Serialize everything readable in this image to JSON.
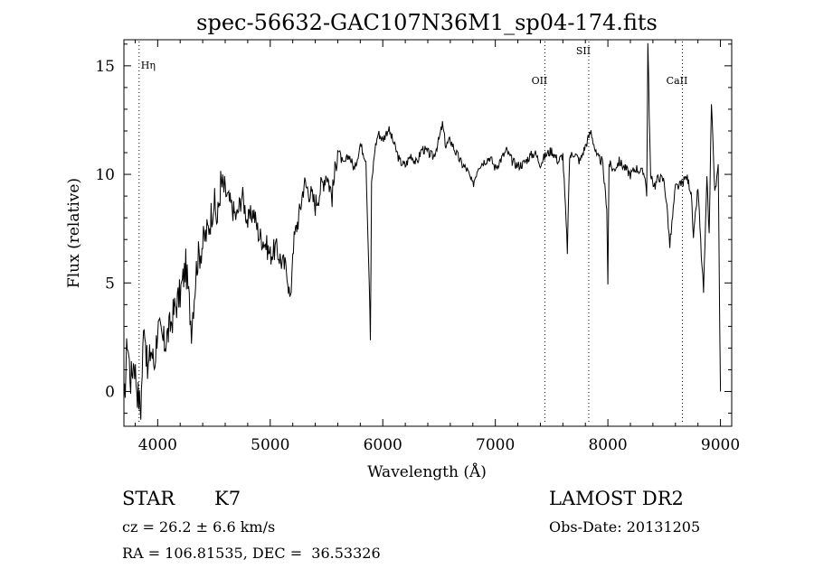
{
  "chart_data": {
    "type": "line",
    "title": "spec-56632-GAC107N36M1_sp04-174.fits",
    "xlabel": "Wavelength (Å)",
    "ylabel": "Flux (relative)",
    "xlim": [
      3700,
      9100
    ],
    "ylim": [
      -1.6,
      16.2
    ],
    "xticks": [
      "4000",
      "5000",
      "6000",
      "7000",
      "8000",
      "9000"
    ],
    "xtick_values": [
      4000,
      5000,
      6000,
      7000,
      8000,
      9000
    ],
    "yticks": [
      "0",
      "5",
      "10",
      "15"
    ],
    "ytick_values": [
      0,
      5,
      10,
      15
    ],
    "lines": [
      {
        "label": "Hη",
        "x": 3835
      },
      {
        "label": "OII",
        "x": 7440
      },
      {
        "label": "SII",
        "x": 7830
      },
      {
        "label": "CaII",
        "x": 8662
      }
    ],
    "series": [
      {
        "x": [
          3700,
          3730,
          3760,
          3790,
          3820,
          3850,
          3880,
          3910,
          3940,
          3970,
          4000,
          4030,
          4060,
          4100,
          4150,
          4200,
          4250,
          4300,
          4350,
          4400,
          4450,
          4500,
          4530,
          4560,
          4600,
          4650,
          4700,
          4750,
          4800,
          4850,
          4900,
          4950,
          5000,
          5050,
          5100,
          5150,
          5180,
          5200,
          5230,
          5260,
          5300,
          5350,
          5400,
          5450,
          5500,
          5550,
          5600,
          5650,
          5700,
          5750,
          5800,
          5850,
          5880,
          5890,
          5900,
          5930,
          5960,
          6000,
          6050,
          6100,
          6150,
          6200,
          6250,
          6300,
          6350,
          6400,
          6450,
          6500,
          6530,
          6560,
          6600,
          6650,
          6700,
          6750,
          6800,
          6850,
          6900,
          6950,
          7000,
          7050,
          7100,
          7150,
          7200,
          7250,
          7300,
          7350,
          7400,
          7450,
          7500,
          7560,
          7600,
          7640,
          7660,
          7700,
          7750,
          7800,
          7850,
          7900,
          7950,
          7990,
          8000,
          8010,
          8050,
          8100,
          8150,
          8200,
          8250,
          8300,
          8330,
          8345,
          8355,
          8380,
          8420,
          8450,
          8500,
          8530,
          8550,
          8600,
          8650,
          8700,
          8740,
          8760,
          8800,
          8830,
          8850,
          8880,
          8900,
          8920,
          8950,
          8980,
          9000
        ],
        "y": [
          -1.0,
          2.5,
          0.5,
          1.5,
          0.0,
          -0.8,
          3.5,
          0.8,
          2.0,
          1.2,
          3.0,
          2.5,
          2.2,
          2.8,
          3.8,
          4.5,
          5.8,
          3.0,
          6.0,
          6.8,
          7.5,
          8.8,
          7.8,
          9.6,
          9.2,
          8.6,
          8.0,
          9.1,
          7.8,
          8.3,
          7.2,
          6.9,
          6.3,
          6.6,
          6.0,
          5.6,
          4.0,
          6.6,
          7.5,
          8.2,
          9.6,
          9.2,
          8.6,
          9.4,
          10.1,
          9.0,
          11.2,
          10.4,
          10.9,
          10.2,
          11.4,
          10.7,
          5.0,
          2.4,
          9.5,
          11.2,
          11.9,
          11.6,
          12.1,
          11.4,
          10.6,
          10.4,
          10.9,
          10.5,
          11.2,
          11.0,
          10.8,
          11.6,
          12.3,
          11.3,
          11.6,
          11.0,
          10.5,
          10.2,
          9.5,
          10.4,
          10.6,
          10.8,
          10.3,
          10.7,
          11.1,
          10.6,
          10.4,
          10.5,
          10.8,
          11.0,
          10.5,
          10.9,
          11.1,
          10.6,
          10.9,
          6.5,
          10.8,
          11.0,
          10.6,
          11.3,
          12.0,
          10.8,
          10.6,
          8.5,
          4.9,
          10.5,
          10.2,
          10.6,
          10.3,
          10.0,
          10.3,
          10.1,
          10.0,
          9.0,
          16.0,
          9.8,
          9.5,
          9.9,
          9.7,
          8.2,
          6.7,
          9.4,
          9.5,
          9.9,
          9.2,
          7.0,
          9.4,
          6.3,
          4.6,
          9.7,
          7.2,
          13.4,
          9.1,
          10.3,
          0.0
        ]
      }
    ]
  },
  "info": {
    "object_class": "STAR",
    "subclass": "K7",
    "cz": "cz = 26.2 ± 6.6 km/s",
    "coords": "RA = 106.81535, DEC =  36.53326",
    "survey": "LAMOST DR2",
    "obs_date": "Obs-Date: 20131205"
  }
}
